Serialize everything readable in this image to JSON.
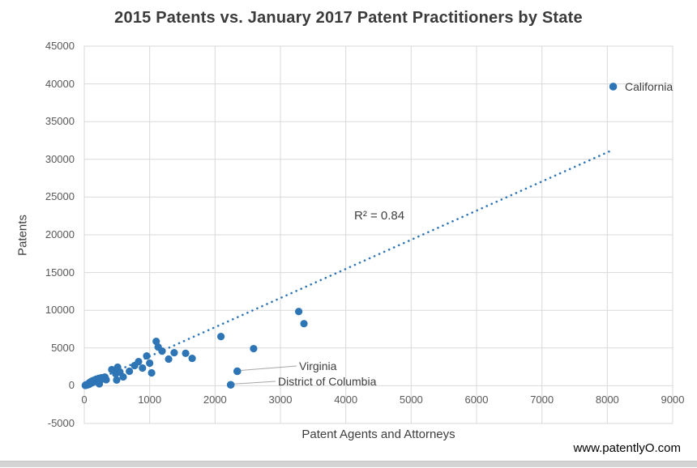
{
  "page": {
    "watermark": "www.patentlyO.com"
  },
  "chart_data": {
    "type": "scatter",
    "title": "2015 Patents vs. January 2017 Patent Practitioners by State",
    "xlabel": "Patent Agents and Attorneys",
    "ylabel": "Patents",
    "xlim": [
      0,
      9000
    ],
    "ylim": [
      -5000,
      45000
    ],
    "x_ticks": [
      0,
      1000,
      2000,
      3000,
      4000,
      5000,
      6000,
      7000,
      8000,
      9000
    ],
    "y_ticks": [
      -5000,
      0,
      5000,
      10000,
      15000,
      20000,
      25000,
      30000,
      35000,
      40000,
      45000
    ],
    "grid": true,
    "legend": "none",
    "colors": {
      "point": "#2E75B6",
      "trendline": "#2E75B6",
      "gridline": "#D9D9D9",
      "leader_line": "#A6A6A6",
      "tick_text": "#595959",
      "title_text": "#3B3B3B"
    },
    "trendline": {
      "style": "dotted",
      "r_squared_label": "R² = 0.84",
      "x_start": 30,
      "y_start": 150,
      "x_end": 8070,
      "y_end": 31200
    },
    "points": [
      [
        15,
        40
      ],
      [
        25,
        130
      ],
      [
        40,
        90
      ],
      [
        55,
        210
      ],
      [
        70,
        160
      ],
      [
        80,
        420
      ],
      [
        95,
        300
      ],
      [
        105,
        560
      ],
      [
        115,
        380
      ],
      [
        125,
        650
      ],
      [
        140,
        500
      ],
      [
        155,
        760
      ],
      [
        170,
        590
      ],
      [
        185,
        880
      ],
      [
        205,
        700
      ],
      [
        225,
        980
      ],
      [
        230,
        250
      ],
      [
        245,
        820
      ],
      [
        265,
        1060
      ],
      [
        290,
        910
      ],
      [
        315,
        1150
      ],
      [
        335,
        800
      ],
      [
        420,
        2140
      ],
      [
        480,
        1600
      ],
      [
        495,
        750
      ],
      [
        510,
        2460
      ],
      [
        545,
        1820
      ],
      [
        595,
        1175
      ],
      [
        690,
        1920
      ],
      [
        770,
        2670
      ],
      [
        830,
        3200
      ],
      [
        890,
        2350
      ],
      [
        955,
        3950
      ],
      [
        1000,
        2990
      ],
      [
        1030,
        1710
      ],
      [
        1100,
        5880
      ],
      [
        1130,
        5130
      ],
      [
        1190,
        4590
      ],
      [
        1290,
        3530
      ],
      [
        1375,
        4380
      ],
      [
        1550,
        4300
      ],
      [
        1650,
        3630
      ],
      [
        2090,
        6520
      ],
      [
        2590,
        4920
      ],
      [
        3280,
        9830
      ],
      [
        3360,
        8230
      ]
    ],
    "labeled_points": [
      {
        "label": "California",
        "x": 8090,
        "y": 39640,
        "leader": false
      },
      {
        "label": "Virginia",
        "x": 2340,
        "y": 1920,
        "leader": true
      },
      {
        "label": "District of Columbia",
        "x": 2240,
        "y": 120,
        "leader": true
      }
    ]
  }
}
